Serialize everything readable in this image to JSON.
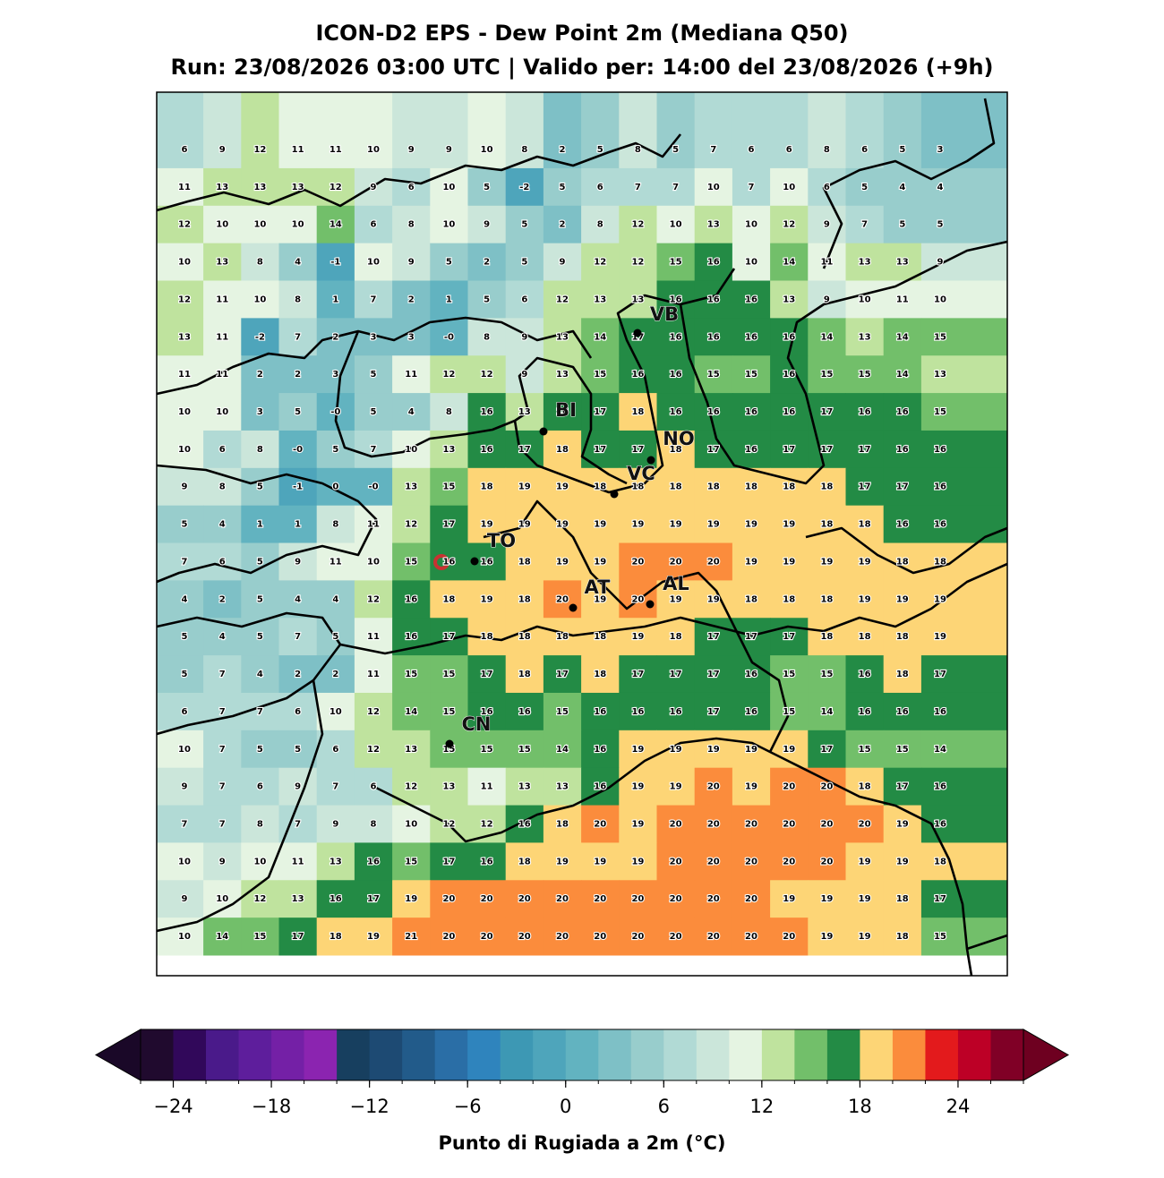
{
  "title": "ICON-D2 EPS - Dew Point 2m (Mediana Q50)",
  "subtitle": "Run: 23/08/2026 03:00 UTC | Valido per: 14:00 del 23/08/2026 (+9h)",
  "grid": {
    "values": [
      [
        6,
        9,
        12,
        11,
        11,
        10,
        9,
        9,
        10,
        8,
        2,
        5,
        8,
        5,
        7,
        6,
        6,
        8,
        6,
        5,
        3
      ],
      [
        11,
        13,
        13,
        13,
        12,
        9,
        6,
        10,
        5,
        -2,
        5,
        6,
        7,
        7,
        10,
        7,
        10,
        6,
        5,
        4,
        4
      ],
      [
        12,
        10,
        10,
        10,
        14,
        6,
        8,
        10,
        9,
        5,
        2,
        8,
        12,
        10,
        13,
        10,
        12,
        9,
        7,
        5,
        5
      ],
      [
        10,
        13,
        8,
        4,
        -1,
        10,
        9,
        5,
        2,
        5,
        9,
        12,
        12,
        15,
        16,
        10,
        14,
        11,
        13,
        13,
        9
      ],
      [
        12,
        11,
        10,
        8,
        1,
        7,
        2,
        1,
        5,
        6,
        12,
        13,
        13,
        16,
        16,
        16,
        13,
        9,
        10,
        11,
        10
      ],
      [
        13,
        11,
        -2,
        7,
        2,
        3,
        3,
        0,
        8,
        9,
        13,
        14,
        17,
        16,
        16,
        16,
        16,
        14,
        13,
        14,
        15
      ],
      [
        11,
        11,
        2,
        2,
        3,
        5,
        11,
        12,
        12,
        9,
        13,
        15,
        16,
        16,
        15,
        15,
        16,
        15,
        15,
        14,
        13
      ],
      [
        10,
        10,
        3,
        5,
        0,
        5,
        4,
        8,
        16,
        13,
        16,
        17,
        18,
        16,
        16,
        16,
        16,
        17,
        16,
        16,
        15
      ],
      [
        10,
        6,
        8,
        0,
        5,
        7,
        10,
        13,
        16,
        17,
        18,
        17,
        17,
        18,
        17,
        16,
        17,
        17,
        17,
        16,
        16
      ],
      [
        9,
        8,
        5,
        -1,
        0,
        0,
        13,
        15,
        18,
        19,
        19,
        18,
        18,
        18,
        18,
        18,
        18,
        18,
        17,
        17,
        16
      ],
      [
        5,
        4,
        1,
        1,
        8,
        11,
        12,
        17,
        19,
        19,
        19,
        19,
        19,
        19,
        19,
        19,
        19,
        18,
        18,
        16,
        16
      ],
      [
        7,
        6,
        5,
        9,
        11,
        10,
        15,
        16,
        16,
        18,
        19,
        19,
        20,
        20,
        20,
        19,
        19,
        19,
        19,
        18,
        18
      ],
      [
        4,
        2,
        5,
        4,
        4,
        12,
        16,
        18,
        19,
        18,
        20,
        19,
        20,
        19,
        19,
        18,
        18,
        18,
        19,
        19,
        19
      ],
      [
        5,
        4,
        5,
        7,
        5,
        11,
        16,
        17,
        18,
        18,
        18,
        18,
        19,
        18,
        17,
        17,
        17,
        18,
        18,
        18,
        19
      ],
      [
        5,
        7,
        4,
        2,
        2,
        11,
        15,
        15,
        17,
        18,
        17,
        18,
        17,
        17,
        17,
        16,
        15,
        15,
        16,
        18,
        17
      ],
      [
        6,
        7,
        7,
        6,
        10,
        12,
        14,
        15,
        16,
        16,
        15,
        16,
        16,
        16,
        17,
        16,
        15,
        14,
        16,
        16,
        16
      ],
      [
        10,
        7,
        5,
        5,
        6,
        12,
        13,
        15,
        15,
        15,
        14,
        16,
        19,
        19,
        19,
        19,
        19,
        17,
        15,
        15,
        14
      ],
      [
        9,
        7,
        6,
        9,
        7,
        6,
        12,
        13,
        11,
        13,
        13,
        16,
        19,
        19,
        20,
        19,
        20,
        20,
        18,
        17,
        16
      ],
      [
        7,
        7,
        8,
        7,
        9,
        8,
        10,
        12,
        12,
        16,
        18,
        20,
        19,
        20,
        20,
        20,
        20,
        20,
        20,
        19,
        16
      ],
      [
        10,
        9,
        10,
        11,
        13,
        16,
        15,
        17,
        16,
        18,
        19,
        19,
        19,
        20,
        20,
        20,
        20,
        20,
        19,
        19,
        18
      ],
      [
        9,
        10,
        12,
        13,
        16,
        17,
        19,
        20,
        20,
        20,
        20,
        20,
        20,
        20,
        20,
        20,
        19,
        19,
        19,
        18,
        17
      ],
      [
        10,
        14,
        15,
        17,
        18,
        19,
        21,
        20,
        20,
        20,
        20,
        20,
        20,
        20,
        20,
        20,
        20,
        19,
        19,
        18,
        15
      ]
    ],
    "value_labels": [
      [
        "6",
        "9",
        "12",
        "11",
        "11",
        "10",
        "9",
        "9",
        "10",
        "8",
        "2",
        "5",
        "8",
        "5",
        "7",
        "6",
        "6",
        "8",
        "6",
        "5",
        "3"
      ],
      [
        "11",
        "13",
        "13",
        "13",
        "12",
        "9",
        "6",
        "10",
        "5",
        "-2",
        "5",
        "6",
        "7",
        "7",
        "10",
        "7",
        "10",
        "6",
        "5",
        "4",
        "4"
      ],
      [
        "12",
        "10",
        "10",
        "10",
        "14",
        "6",
        "8",
        "10",
        "9",
        "5",
        "2",
        "8",
        "12",
        "10",
        "13",
        "10",
        "12",
        "9",
        "7",
        "5",
        "5"
      ],
      [
        "10",
        "13",
        "8",
        "4",
        "-1",
        "10",
        "9",
        "5",
        "2",
        "5",
        "9",
        "12",
        "12",
        "15",
        "16",
        "10",
        "14",
        "11",
        "13",
        "13",
        "9"
      ],
      [
        "12",
        "11",
        "10",
        "8",
        "1",
        "7",
        "2",
        "1",
        "5",
        "6",
        "12",
        "13",
        "13",
        "16",
        "16",
        "16",
        "13",
        "9",
        "10",
        "11",
        "10"
      ],
      [
        "13",
        "11",
        "-2",
        "7",
        "2",
        "3",
        "3",
        "-0",
        "8",
        "9",
        "13",
        "14",
        "17",
        "16",
        "16",
        "16",
        "16",
        "14",
        "13",
        "14",
        "15"
      ],
      [
        "11",
        "11",
        "2",
        "2",
        "3",
        "5",
        "11",
        "12",
        "12",
        "9",
        "13",
        "15",
        "16",
        "16",
        "15",
        "15",
        "16",
        "15",
        "15",
        "14",
        "13"
      ],
      [
        "10",
        "10",
        "3",
        "5",
        "-0",
        "5",
        "4",
        "8",
        "16",
        "13",
        "16",
        "17",
        "18",
        "16",
        "16",
        "16",
        "16",
        "17",
        "16",
        "16",
        "15"
      ],
      [
        "10",
        "6",
        "8",
        "-0",
        "5",
        "7",
        "10",
        "13",
        "16",
        "17",
        "18",
        "17",
        "17",
        "18",
        "17",
        "16",
        "17",
        "17",
        "17",
        "16",
        "16"
      ],
      [
        "9",
        "8",
        "5",
        "-1",
        "0",
        "-0",
        "13",
        "15",
        "18",
        "19",
        "19",
        "18",
        "18",
        "18",
        "18",
        "18",
        "18",
        "18",
        "17",
        "17",
        "16"
      ],
      [
        "5",
        "4",
        "1",
        "1",
        "8",
        "11",
        "12",
        "17",
        "19",
        "19",
        "19",
        "19",
        "19",
        "19",
        "19",
        "19",
        "19",
        "18",
        "18",
        "16",
        "16"
      ],
      [
        "7",
        "6",
        "5",
        "9",
        "11",
        "10",
        "15",
        "16",
        "16",
        "18",
        "19",
        "19",
        "20",
        "20",
        "20",
        "19",
        "19",
        "19",
        "19",
        "18",
        "18"
      ],
      [
        "4",
        "2",
        "5",
        "4",
        "4",
        "12",
        "16",
        "18",
        "19",
        "18",
        "20",
        "19",
        "20",
        "19",
        "19",
        "18",
        "18",
        "18",
        "19",
        "19",
        "19"
      ],
      [
        "5",
        "4",
        "5",
        "7",
        "5",
        "11",
        "16",
        "17",
        "18",
        "18",
        "18",
        "18",
        "19",
        "18",
        "17",
        "17",
        "17",
        "18",
        "18",
        "18",
        "19"
      ],
      [
        "5",
        "7",
        "4",
        "2",
        "2",
        "11",
        "15",
        "15",
        "17",
        "18",
        "17",
        "18",
        "17",
        "17",
        "17",
        "16",
        "15",
        "15",
        "16",
        "18",
        "17"
      ],
      [
        "6",
        "7",
        "7",
        "6",
        "10",
        "12",
        "14",
        "15",
        "16",
        "16",
        "15",
        "16",
        "16",
        "16",
        "17",
        "16",
        "15",
        "14",
        "16",
        "16",
        "16"
      ],
      [
        "10",
        "7",
        "5",
        "5",
        "6",
        "12",
        "13",
        "15",
        "15",
        "15",
        "14",
        "16",
        "19",
        "19",
        "19",
        "19",
        "19",
        "17",
        "15",
        "15",
        "14"
      ],
      [
        "9",
        "7",
        "6",
        "9",
        "7",
        "6",
        "12",
        "13",
        "11",
        "13",
        "13",
        "16",
        "19",
        "19",
        "20",
        "19",
        "20",
        "20",
        "18",
        "17",
        "16"
      ],
      [
        "7",
        "7",
        "8",
        "7",
        "9",
        "8",
        "10",
        "12",
        "12",
        "16",
        "18",
        "20",
        "19",
        "20",
        "20",
        "20",
        "20",
        "20",
        "20",
        "19",
        "16"
      ],
      [
        "10",
        "9",
        "10",
        "11",
        "13",
        "16",
        "15",
        "17",
        "16",
        "18",
        "19",
        "19",
        "19",
        "20",
        "20",
        "20",
        "20",
        "20",
        "19",
        "19",
        "18"
      ],
      [
        "9",
        "10",
        "12",
        "13",
        "16",
        "17",
        "19",
        "20",
        "20",
        "20",
        "20",
        "20",
        "20",
        "20",
        "20",
        "20",
        "19",
        "19",
        "19",
        "18",
        "17"
      ],
      [
        "10",
        "14",
        "15",
        "17",
        "18",
        "19",
        "21",
        "20",
        "20",
        "20",
        "20",
        "20",
        "20",
        "20",
        "20",
        "20",
        "20",
        "19",
        "19",
        "18",
        "15"
      ]
    ]
  },
  "cities": [
    "VB",
    "BI",
    "NO",
    "VC",
    "TO",
    "AT",
    "AL",
    "CN"
  ],
  "colorbar": {
    "levels": [
      -26,
      -24,
      -22,
      -20,
      -18,
      -16,
      -14,
      -12,
      -10,
      -8,
      -6,
      -4,
      -2,
      0,
      2,
      4,
      6,
      8,
      10,
      12,
      14,
      16,
      18,
      20,
      22,
      24,
      26,
      28
    ],
    "colors": [
      "#200a2e",
      "#31085a",
      "#4a1a8a",
      "#5e1e9c",
      "#7420a6",
      "#8b24b0",
      "#173f5f",
      "#1d4a73",
      "#225b8a",
      "#2a6ea6",
      "#2f84bd",
      "#3d98b4",
      "#4ea5bb",
      "#62b3c0",
      "#7ec0c6",
      "#98cdcc",
      "#b1dad5",
      "#cbe6da",
      "#e5f4e2",
      "#bfe39e",
      "#72bf6a",
      "#238b45",
      "#fdd576",
      "#fb8c3c",
      "#e31a1c",
      "#bd0026",
      "#800026"
    ],
    "under_color": "#1a0828",
    "over_color": "#6e0020",
    "ticks": [
      {
        "value": -24,
        "label": "−24"
      },
      {
        "value": -18,
        "label": "−18"
      },
      {
        "value": -12,
        "label": "−12"
      },
      {
        "value": -6,
        "label": "−6"
      },
      0,
      6,
      12,
      18,
      24
    ],
    "label": "Punto di Rugiada a 2m (°C)"
  }
}
